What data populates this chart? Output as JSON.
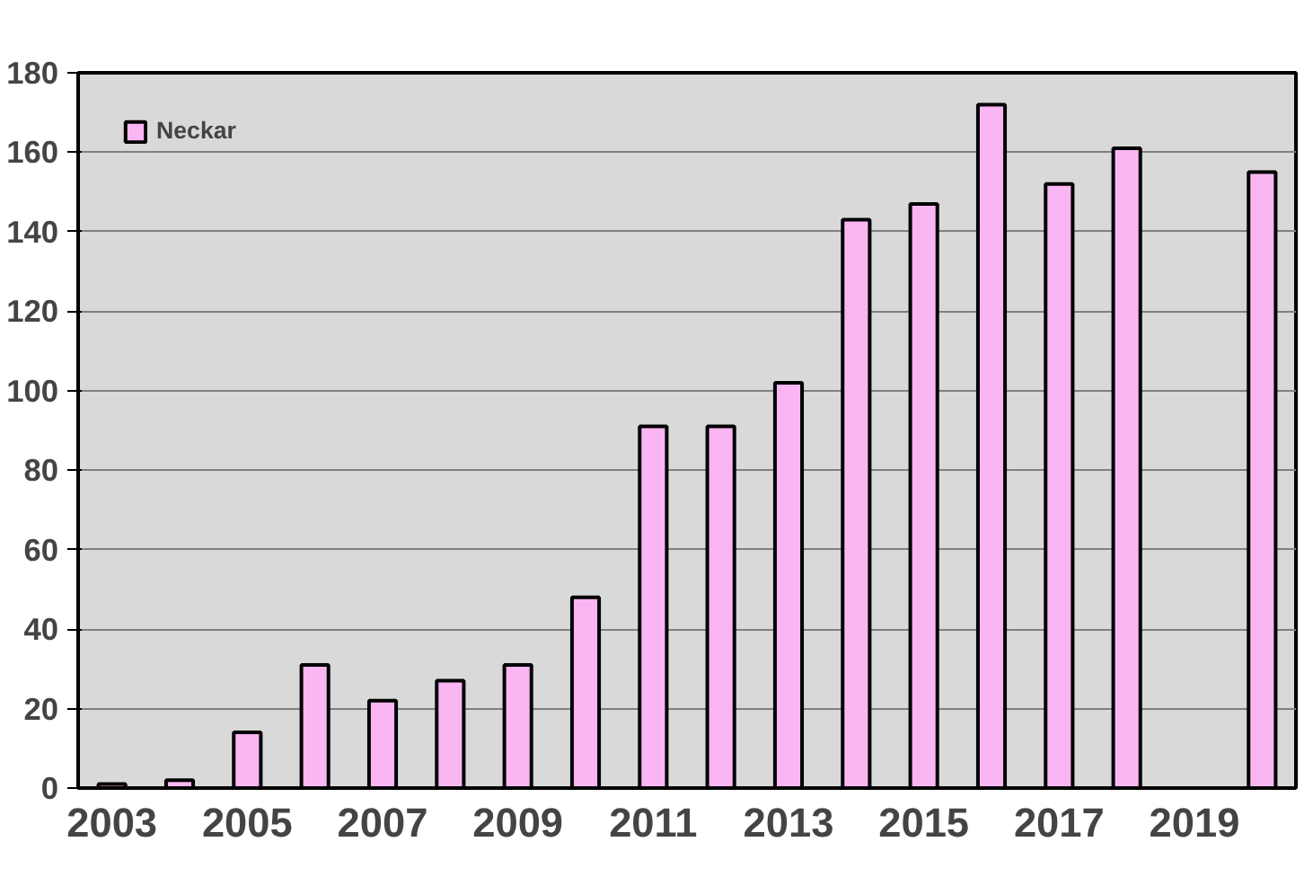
{
  "chart_data": {
    "type": "bar",
    "categories": [
      "2003",
      null,
      "2005",
      null,
      "2007",
      null,
      "2009",
      null,
      "2011",
      null,
      "2013",
      null,
      "2015",
      null,
      "2017",
      null,
      "2019",
      null
    ],
    "series": [
      {
        "name": "Neckar",
        "color": "#f9b6f3",
        "values": [
          1,
          2,
          14,
          31,
          22,
          27,
          31,
          48,
          91,
          91,
          102,
          143,
          147,
          172,
          152,
          161,
          null,
          155
        ]
      }
    ],
    "ylim": [
      0,
      180
    ],
    "yticks": [
      0,
      20,
      40,
      60,
      80,
      100,
      120,
      140,
      160,
      180
    ],
    "grid": "y",
    "legend": "top left"
  }
}
